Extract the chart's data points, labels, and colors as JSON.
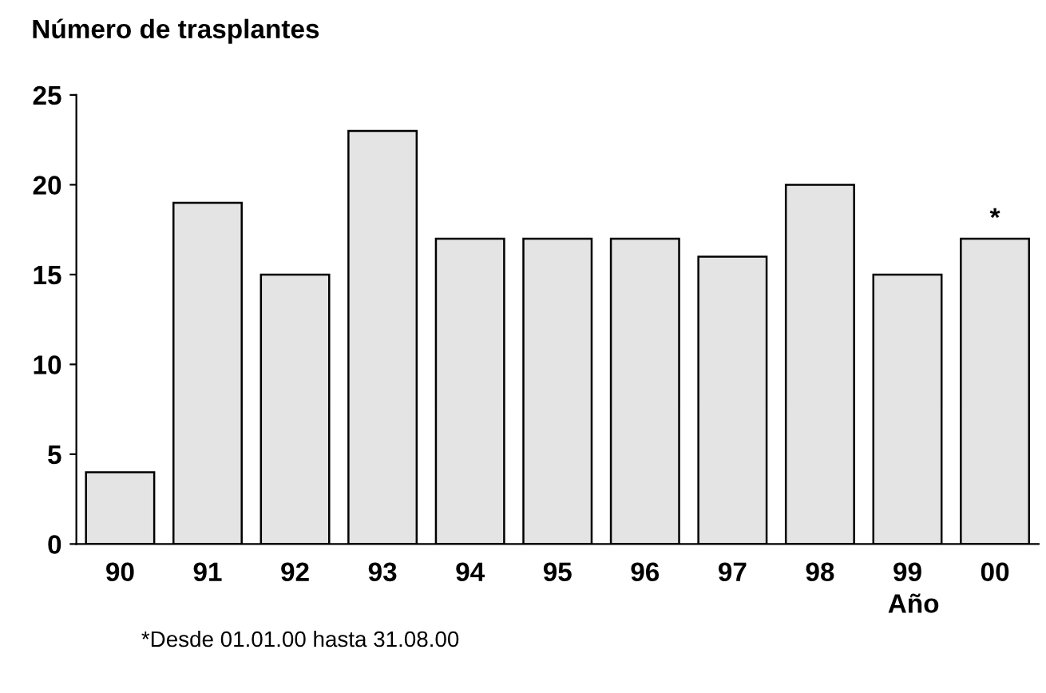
{
  "chart_data": {
    "type": "bar",
    "title": "Número de trasplantes",
    "xlabel": "Año",
    "categories": [
      "90",
      "91",
      "92",
      "93",
      "94",
      "95",
      "96",
      "97",
      "98",
      "99",
      "00"
    ],
    "values": [
      4,
      19,
      15,
      23,
      17,
      17,
      17,
      16,
      20,
      15,
      17
    ],
    "color": "#e4e4e4",
    "ylim": [
      0,
      25
    ],
    "yticks": [
      0,
      5,
      10,
      15,
      20,
      25
    ],
    "grid": false,
    "legend": false,
    "annotations": [
      {
        "text": "*",
        "x": "00",
        "y": 17
      },
      "*Desde 01.01.00 hasta 31.08.00"
    ]
  }
}
